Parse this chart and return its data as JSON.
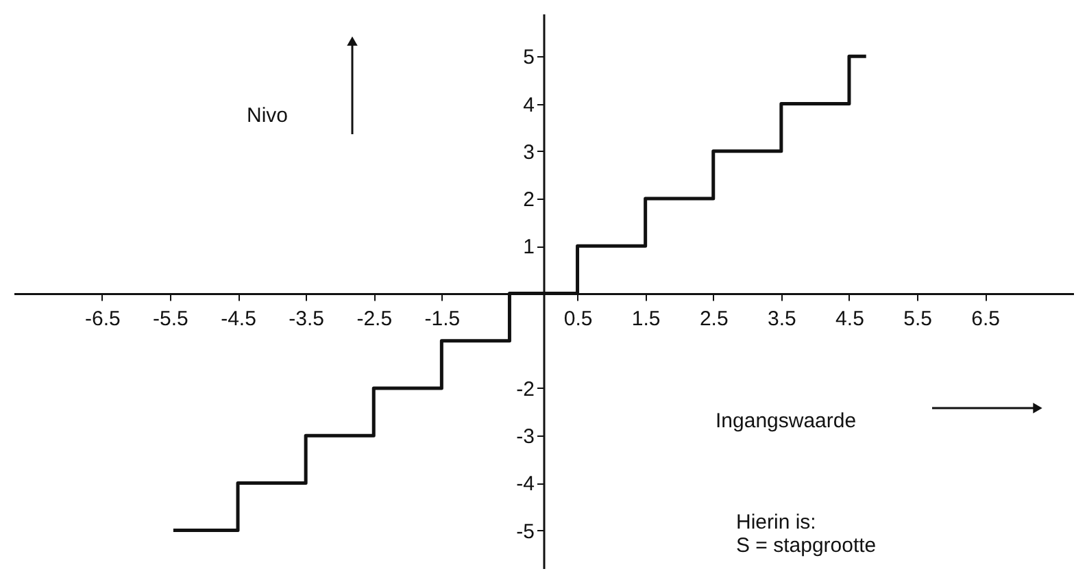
{
  "chart_data": {
    "type": "step",
    "x": [
      -5.45,
      -4.5,
      -3.5,
      -2.5,
      -1.5,
      -0.5,
      0.5,
      1.5,
      2.5,
      3.5,
      4.5,
      4.75
    ],
    "values": [
      -5,
      -4,
      -3,
      -2,
      -1,
      0,
      1,
      2,
      3,
      4,
      5,
      5
    ],
    "color": "#111111",
    "xlim": [
      -7.8,
      7.8
    ],
    "ylim": [
      -5.8,
      5.9
    ],
    "xticks": [
      -6.5,
      -5.5,
      -4.5,
      -3.5,
      -2.5,
      -1.5,
      0.5,
      1.5,
      2.5,
      3.5,
      4.5,
      5.5,
      6.5
    ],
    "yticks": [
      -5,
      -4,
      -3,
      -2,
      1,
      2,
      3,
      4,
      5
    ],
    "xlabel": "Ingangswaarde",
    "ylabel": "Nivo",
    "annotations": [
      "Hierin is:\nS = stapgrootte"
    ],
    "grid": false,
    "line_style": "solid"
  }
}
